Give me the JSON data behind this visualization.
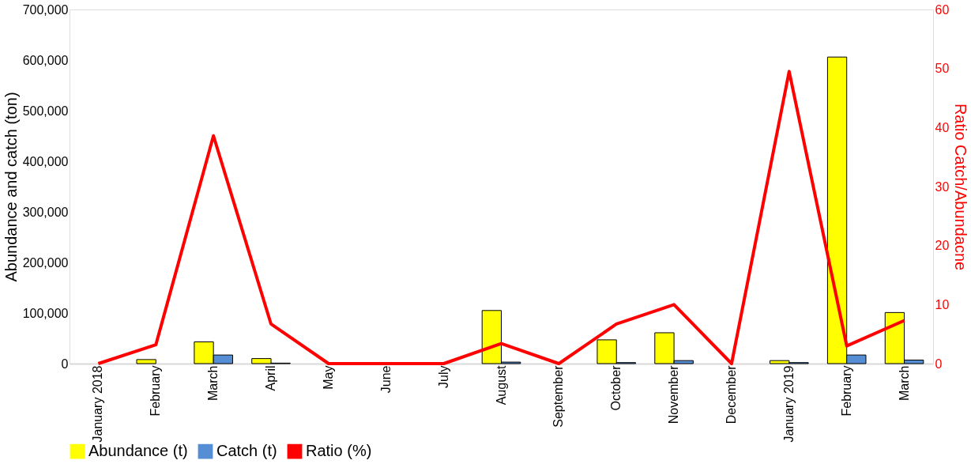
{
  "chart_data": {
    "type": "bar",
    "ylabel": "Abundance and catch  (ton)",
    "y2label": "Ratio Catch/Abundacne",
    "categories": [
      "January 2018",
      "February",
      "March",
      "April",
      "May",
      "June",
      "July",
      "August",
      "September",
      "October",
      "November",
      "December",
      "January 2019",
      "February",
      "March"
    ],
    "series": [
      {
        "name": "Abundance (t)",
        "color": "#ffff00",
        "values": [
          0,
          8000,
          43000,
          10000,
          0,
          0,
          0,
          105000,
          0,
          47000,
          61000,
          0,
          6000,
          606000,
          101000
        ]
      },
      {
        "name": "Catch (t)",
        "color": "#558ed5",
        "values": [
          0,
          0,
          17000,
          1000,
          0,
          0,
          0,
          3000,
          0,
          2000,
          6000,
          0,
          2000,
          17000,
          7000
        ]
      },
      {
        "name": "Ratio (%)",
        "type": "line",
        "axis": "y2",
        "color": "#ff0000",
        "values": [
          0,
          3.2,
          38.6,
          6.7,
          0,
          0,
          0,
          3.4,
          0,
          6.7,
          10.0,
          0,
          49.5,
          3.0,
          7.3
        ]
      }
    ],
    "ylim": [
      0,
      700000
    ],
    "yticks": [
      0,
      {
        "value": 100000,
        "label": "100,000"
      },
      {
        "value": 200000,
        "label": "200,000"
      },
      {
        "value": 300000,
        "label": "300,000"
      },
      {
        "value": 400000,
        "label": "400,000"
      },
      {
        "value": 500000,
        "label": "500,000"
      },
      {
        "value": 600000,
        "label": "600,000"
      },
      {
        "value": 700000,
        "label": "700,000"
      }
    ],
    "y2lim": [
      0,
      60
    ],
    "y2ticks": [
      0,
      10,
      20,
      30,
      40,
      50,
      60
    ],
    "grid": false,
    "legend": "bottom",
    "marker": "none",
    "line_style": "solid"
  }
}
